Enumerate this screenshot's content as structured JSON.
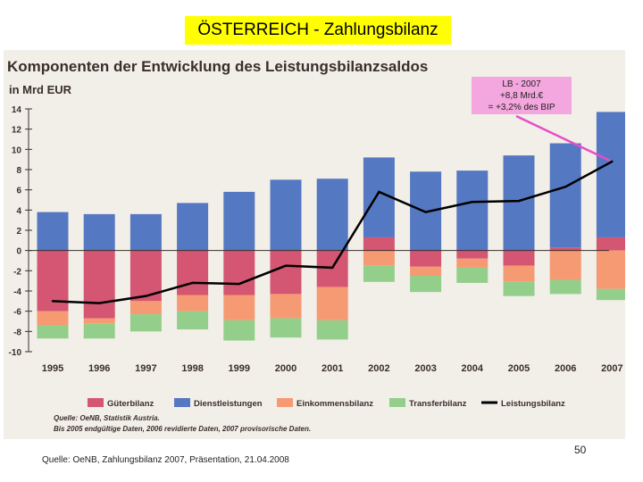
{
  "slide": {
    "title": "ÖSTERREICH - Zahlungsbilanz",
    "footer": "Quelle: OeNB, Zahlungsbilanz 2007, Präsentation, 21.04.2008",
    "page_number": "50"
  },
  "callout": {
    "line1": "LB - 2007",
    "line2": "+8,8 Mrd.€",
    "line3": "= +3,2% des BIP"
  },
  "colors": {
    "gueterbilanz": "#d45672",
    "dienstleistungen": "#5578c2",
    "einkommensbilanz": "#f59a72",
    "transferbilanz": "#93cf8b",
    "leistungsbilanz": "#000000",
    "callout_bg": "#f4a6de",
    "callout_arrow": "#e84cc8",
    "panel_bg": "#f2efe9",
    "title_bg": "#ffff00"
  },
  "chart_data": {
    "type": "bar",
    "subtype": "stacked-bar-with-line",
    "title": "Komponenten der Entwicklung des Leistungsbilanzsaldos",
    "ylabel": "in Mrd EUR",
    "ylim": [
      -10,
      14
    ],
    "yticks": [
      14,
      12,
      10,
      8,
      6,
      4,
      2,
      0,
      -2,
      -4,
      -6,
      -8,
      -10
    ],
    "grid": false,
    "legend_position": "bottom",
    "categories": [
      "1995",
      "1996",
      "1997",
      "1998",
      "1999",
      "2000",
      "2001",
      "2002",
      "2003",
      "2004",
      "2005",
      "2006",
      "2007"
    ],
    "series": [
      {
        "name": "Güterbilanz",
        "type": "bar",
        "values": [
          -6.0,
          -6.7,
          -5.0,
          -4.4,
          -4.4,
          -4.3,
          -3.6,
          1.3,
          -1.6,
          -0.8,
          -1.5,
          0.3,
          1.3
        ]
      },
      {
        "name": "Dienstleistungen",
        "type": "bar",
        "values": [
          3.8,
          3.6,
          3.6,
          4.7,
          5.8,
          7.0,
          7.1,
          7.9,
          7.8,
          7.9,
          9.4,
          10.3,
          12.4
        ]
      },
      {
        "name": "Einkommensbilanz",
        "type": "bar",
        "values": [
          -1.4,
          -0.5,
          -1.3,
          -1.6,
          -2.5,
          -2.4,
          -3.3,
          -1.5,
          -0.9,
          -0.9,
          -1.6,
          -2.9,
          -3.8
        ]
      },
      {
        "name": "Transferbilanz",
        "type": "bar",
        "values": [
          -1.3,
          -1.5,
          -1.7,
          -1.8,
          -2.0,
          -1.9,
          -1.9,
          -1.6,
          -1.6,
          -1.5,
          -1.4,
          -1.4,
          -1.1
        ]
      },
      {
        "name": "Leistungsbilanz",
        "type": "line",
        "values": [
          -5.0,
          -5.2,
          -4.5,
          -3.2,
          -3.3,
          -1.5,
          -1.7,
          5.8,
          3.8,
          4.8,
          4.9,
          6.3,
          8.8
        ]
      }
    ],
    "source_line1": "Quelle: OeNB, Statistik Austria.",
    "source_line2": "Bis 2005 endgültige Daten, 2006 revidierte Daten, 2007 provisorische Daten."
  }
}
